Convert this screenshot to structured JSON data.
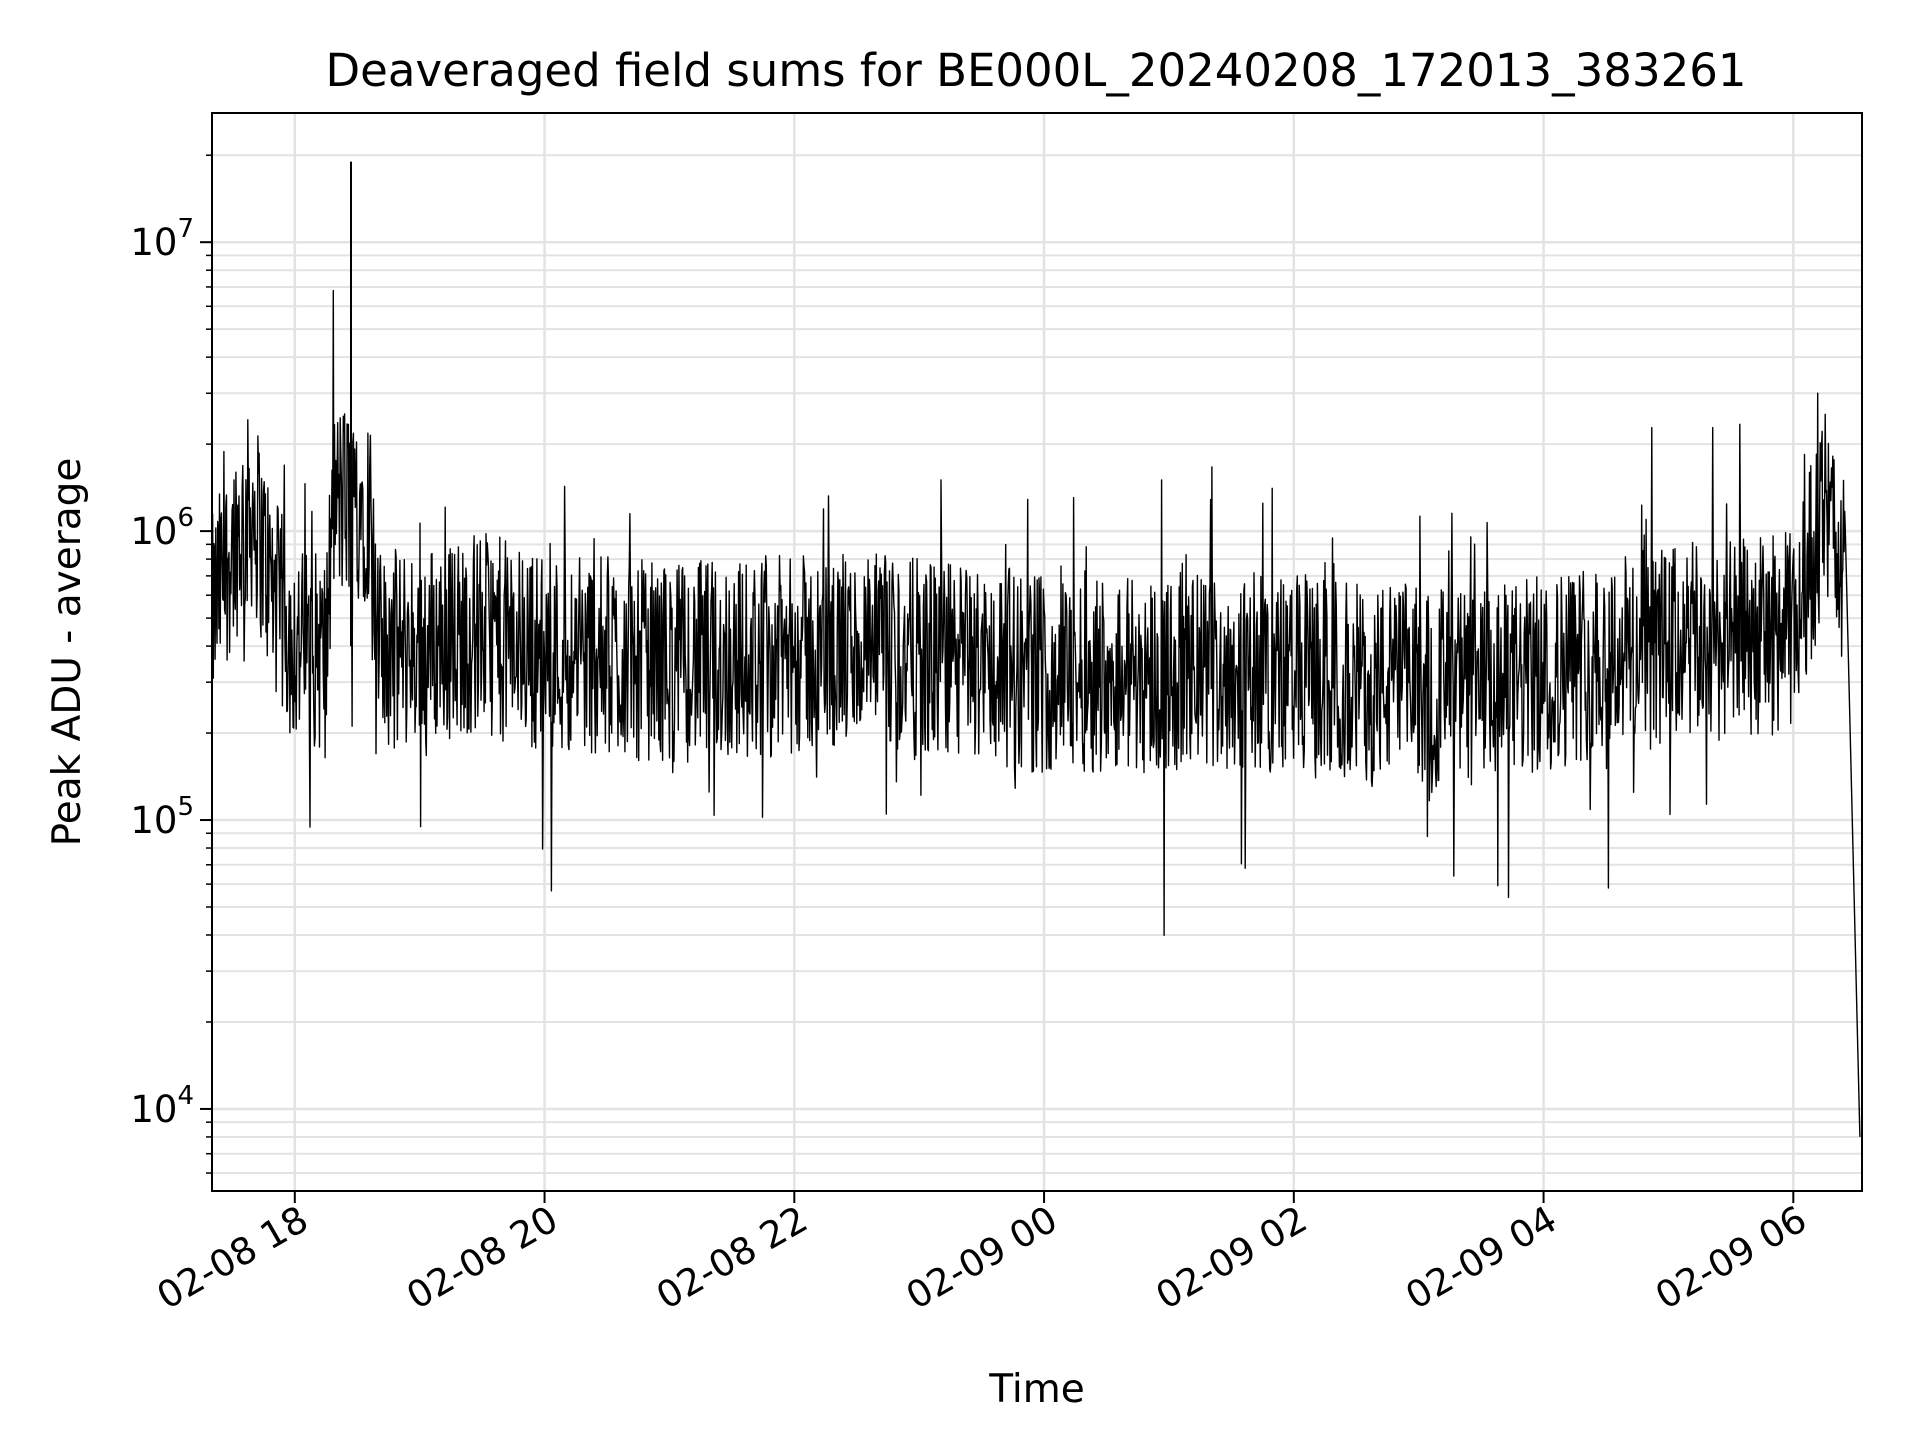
{
  "chart_data": {
    "type": "line",
    "title": "Deaveraged field sums for BE000L_20240208_172013_383261",
    "xlabel": "Time",
    "ylabel": "Peak ADU - average",
    "yscale": "log",
    "grid": true,
    "legend": "none",
    "line_color": "#000000",
    "xlim": [
      "2024-02-08T17:20:13",
      "2024-02-09T06:33:00"
    ],
    "ylim": [
      5200,
      28000000
    ],
    "x_ticks": [
      {
        "value": "2024-02-08T18:00",
        "label": "02-08 18"
      },
      {
        "value": "2024-02-08T20:00",
        "label": "02-08 20"
      },
      {
        "value": "2024-02-08T22:00",
        "label": "02-08 22"
      },
      {
        "value": "2024-02-09T00:00",
        "label": "02-09 00"
      },
      {
        "value": "2024-02-09T02:00",
        "label": "02-09 02"
      },
      {
        "value": "2024-02-09T04:00",
        "label": "02-09 04"
      },
      {
        "value": "2024-02-09T06:00",
        "label": "02-09 06"
      }
    ],
    "y_ticks": [
      {
        "value": 10000,
        "base": "10",
        "exp": "4"
      },
      {
        "value": 100000,
        "base": "10",
        "exp": "5"
      },
      {
        "value": 1000000,
        "base": "10",
        "exp": "6"
      },
      {
        "value": 10000000,
        "base": "10",
        "exp": "7"
      }
    ],
    "series": [
      {
        "x": [
          "2024-02-08T17:20",
          "2024-02-08T17:30",
          "2024-02-08T17:40",
          "2024-02-08T17:50",
          "2024-02-08T18:00",
          "2024-02-08T18:15",
          "2024-02-08T18:27",
          "2024-02-08T18:40",
          "2024-02-08T19:00",
          "2024-02-08T19:30",
          "2024-02-08T20:00",
          "2024-02-08T20:30",
          "2024-02-08T21:00",
          "2024-02-08T21:30",
          "2024-02-08T22:00",
          "2024-02-08T22:30",
          "2024-02-08T23:00",
          "2024-02-08T23:30",
          "2024-02-09T00:00",
          "2024-02-09T00:30",
          "2024-02-09T01:00",
          "2024-02-09T01:30",
          "2024-02-09T02:00",
          "2024-02-09T02:30",
          "2024-02-09T03:00",
          "2024-02-09T03:30",
          "2024-02-09T04:00",
          "2024-02-09T04:30",
          "2024-02-09T05:00",
          "2024-02-09T05:30",
          "2024-02-09T06:00",
          "2024-02-09T06:15",
          "2024-02-09T06:25",
          "2024-02-09T06:32"
        ],
        "y": [
          500000,
          900000,
          1200000,
          600000,
          400000,
          380000,
          19000000,
          380000,
          400000,
          450000,
          380000,
          370000,
          350000,
          360000,
          370000,
          380000,
          360000,
          350000,
          320000,
          330000,
          320000,
          330000,
          320000,
          300000,
          300000,
          280000,
          320000,
          380000,
          400000,
          420000,
          450000,
          1200000,
          700000,
          8000
        ]
      }
    ]
  }
}
